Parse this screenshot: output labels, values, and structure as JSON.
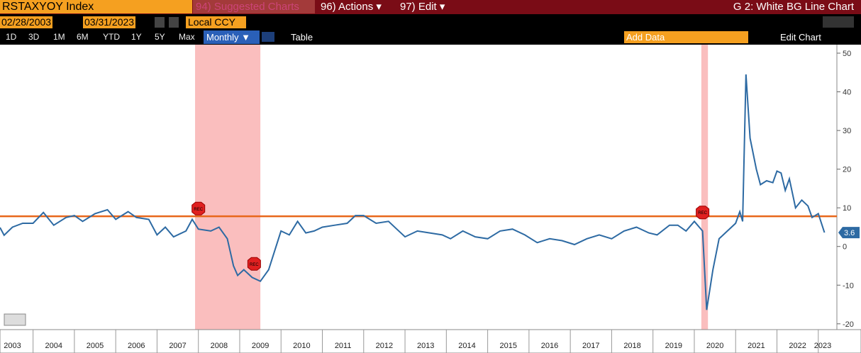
{
  "toolbar": {
    "ticker": "RSTAXYOY Index",
    "suggested": "94) Suggested Charts",
    "actions": "96) Actions ▾",
    "edit": "97) Edit ▾",
    "chart_name": "G 2: White BG Line Chart",
    "start_date": "02/28/2003",
    "end_date": "03/31/2023",
    "currency": "Local CCY",
    "periods": [
      "1D",
      "3D",
      "1M",
      "6M",
      "YTD",
      "1Y",
      "5Y",
      "Max"
    ],
    "frequency": "Monthly ▼",
    "table": "Table",
    "add_data": "Add Data",
    "edit_chart": "Edit Chart"
  },
  "chart_data": {
    "type": "line",
    "x": [
      2003.2,
      2003.3,
      2003.5,
      2003.75,
      2004.0,
      2004.25,
      2004.5,
      2004.8,
      2005.0,
      2005.2,
      2005.5,
      2005.8,
      2006.0,
      2006.3,
      2006.5,
      2006.8,
      2007.0,
      2007.2,
      2007.4,
      2007.7,
      2007.85,
      2008.0,
      2008.3,
      2008.5,
      2008.7,
      2008.85,
      2008.95,
      2009.1,
      2009.3,
      2009.5,
      2009.7,
      2009.85,
      2010.0,
      2010.2,
      2010.4,
      2010.6,
      2010.8,
      2011.0,
      2011.3,
      2011.6,
      2011.8,
      2012.0,
      2012.3,
      2012.6,
      2012.8,
      2013.0,
      2013.3,
      2013.6,
      2013.9,
      2014.1,
      2014.4,
      2014.7,
      2015.0,
      2015.3,
      2015.6,
      2015.9,
      2016.2,
      2016.5,
      2016.8,
      2017.1,
      2017.4,
      2017.7,
      2018.0,
      2018.3,
      2018.6,
      2018.9,
      2019.1,
      2019.4,
      2019.6,
      2019.8,
      2020.0,
      2020.2,
      2020.3,
      2020.45,
      2020.6,
      2020.8,
      2021.0,
      2021.1,
      2021.17,
      2021.25,
      2021.35,
      2021.5,
      2021.6,
      2021.75,
      2021.9,
      2022.0,
      2022.1,
      2022.2,
      2022.3,
      2022.45,
      2022.6,
      2022.75,
      2022.85,
      2023.0,
      2023.15
    ],
    "series": [
      {
        "name": "RSTAXYOY Index",
        "color": "#2d6aa3",
        "values": [
          4.9,
          2.9,
          5,
          6,
          6,
          8.8,
          5.5,
          7.5,
          8,
          6.5,
          8.5,
          9.5,
          7,
          9,
          7.5,
          7,
          3,
          5,
          2.5,
          4,
          7,
          4.5,
          4,
          5,
          2,
          -5,
          -7.5,
          -6,
          -8,
          -9,
          -6,
          -1,
          4,
          3,
          6.5,
          3.5,
          4,
          5,
          5.5,
          6,
          8,
          8,
          6,
          6.5,
          4.5,
          2.5,
          4,
          3.5,
          3,
          2,
          4,
          2.5,
          2,
          4,
          4.5,
          3,
          1,
          2,
          1.5,
          0.5,
          2,
          3,
          2,
          4,
          5,
          3.5,
          3,
          5.5,
          5.5,
          4,
          6.5,
          4,
          -16.4,
          -6,
          2,
          4,
          6,
          9,
          6.5,
          44.5,
          28,
          20,
          16,
          17,
          16.5,
          19.5,
          19,
          14.5,
          17.5,
          10,
          12,
          10.5,
          7.5,
          8.5,
          3.6
        ]
      }
    ],
    "xlim": [
      2003.2,
      2023.45
    ],
    "xticks": [
      2003,
      2004,
      2005,
      2006,
      2007,
      2008,
      2009,
      2010,
      2011,
      2012,
      2013,
      2014,
      2015,
      2016,
      2017,
      2018,
      2019,
      2020,
      2021,
      2022,
      2023
    ],
    "ylim": [
      -21.5,
      52.2
    ],
    "yticks": [
      -20,
      -10,
      0,
      10,
      20,
      30,
      40,
      50
    ],
    "reference_line": 7.8,
    "reference_color": "#e8661a",
    "shaded_ranges": [
      [
        2007.92,
        2009.5
      ],
      [
        2020.17,
        2020.33
      ]
    ],
    "shade_color": "#f9b3b3",
    "marker_label": "REC"
  }
}
